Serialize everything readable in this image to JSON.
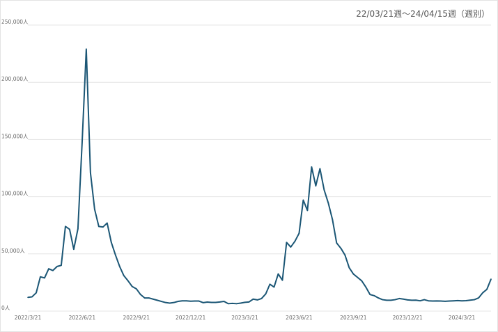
{
  "period_label": "22/03/21週〜24/04/15週（週別）",
  "colors": {
    "line": "#1b5675",
    "grid": "#e4e4e4",
    "text": "#666666"
  },
  "chart_data": {
    "type": "line",
    "title": "22/03/21週〜24/04/15週（週別）",
    "xlabel": "",
    "ylabel": "",
    "ylim": [
      0,
      250000
    ],
    "grid": true,
    "y_ticks": [
      {
        "value": 250000,
        "label": "250,000人"
      },
      {
        "value": 200000,
        "label": "200,000人"
      },
      {
        "value": 150000,
        "label": "150,000人"
      },
      {
        "value": 100000,
        "label": "100,000人"
      },
      {
        "value": 50000,
        "label": "50,000人"
      },
      {
        "value": 0,
        "label": "0人"
      }
    ],
    "x_ticks": [
      {
        "index": 0,
        "label": "2022/3/21"
      },
      {
        "index": 13,
        "label": "2022/6/21"
      },
      {
        "index": 26,
        "label": "2022/9/21"
      },
      {
        "index": 39,
        "label": "2022/12/21"
      },
      {
        "index": 52,
        "label": "2023/3/21"
      },
      {
        "index": 65,
        "label": "2023/6/21"
      },
      {
        "index": 78,
        "label": "2023/9/21"
      },
      {
        "index": 91,
        "label": "2023/12/21"
      },
      {
        "index": 104,
        "label": "2024/3/21"
      }
    ],
    "series": [
      {
        "values": [
          12000,
          12500,
          16000,
          30000,
          29000,
          37000,
          35500,
          39000,
          40000,
          74000,
          71500,
          54000,
          72000,
          147000,
          229000,
          121000,
          89000,
          74000,
          73500,
          77000,
          60000,
          49000,
          39000,
          31000,
          26500,
          21500,
          19500,
          14500,
          11500,
          11500,
          10500,
          9500,
          8500,
          7500,
          7000,
          7500,
          8500,
          9000,
          9000,
          8700,
          8800,
          8800,
          7400,
          7900,
          7600,
          7600,
          8000,
          8500,
          6500,
          6800,
          6500,
          7000,
          7700,
          8000,
          10500,
          9800,
          11000,
          15000,
          23500,
          21000,
          32500,
          27000,
          60000,
          56000,
          61000,
          68000,
          97000,
          88000,
          126000,
          109500,
          124500,
          106000,
          94500,
          80000,
          59500,
          55000,
          49000,
          38000,
          32500,
          29500,
          26500,
          21000,
          14500,
          13500,
          11500,
          10000,
          9500,
          9500,
          10000,
          11000,
          10500,
          9800,
          9500,
          9600,
          9000,
          10000,
          9000,
          8800,
          8900,
          8800,
          8600,
          8800,
          9000,
          9200,
          9000,
          9100,
          9600,
          10000,
          11500,
          16000,
          19000,
          28000
        ]
      }
    ]
  }
}
